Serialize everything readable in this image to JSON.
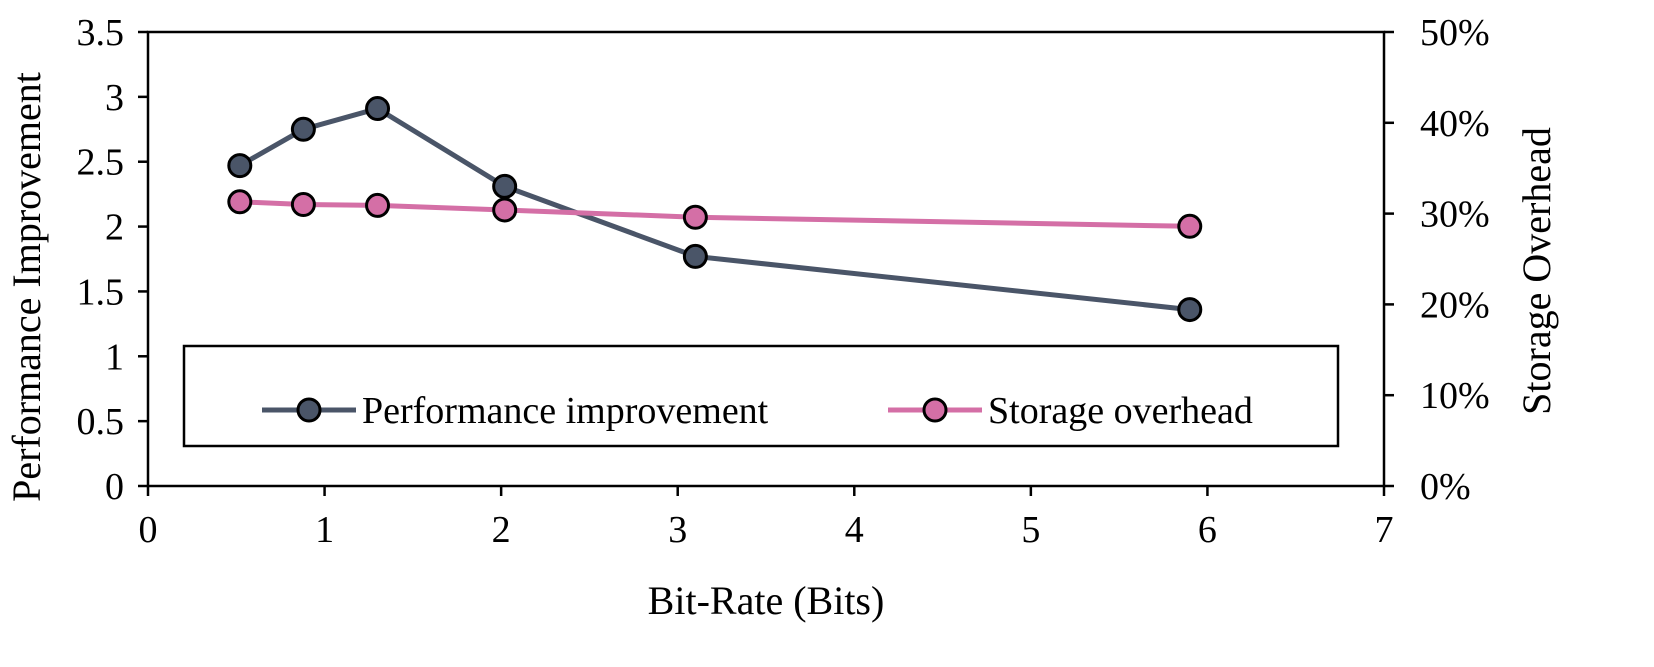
{
  "chart_data": {
    "type": "line",
    "title": "",
    "xlabel": "Bit-Rate (Bits)",
    "ylabel": "Performance Improvement",
    "y2label": "Storage Overhead",
    "xlim": [
      0,
      7
    ],
    "ylim": [
      0,
      3.5
    ],
    "y2lim": [
      0,
      50
    ],
    "x_ticks": [
      0,
      1,
      2,
      3,
      4,
      5,
      6,
      7
    ],
    "x_tick_labels": [
      "0",
      "1",
      "2",
      "3",
      "4",
      "5",
      "6",
      "7"
    ],
    "y_ticks": [
      0,
      0.5,
      1,
      1.5,
      2,
      2.5,
      3,
      3.5
    ],
    "y_tick_labels": [
      "0",
      "0.5",
      "1",
      "1.5",
      "2",
      "2.5",
      "3",
      "3.5"
    ],
    "y2_ticks": [
      0,
      10,
      20,
      30,
      40,
      50
    ],
    "y2_tick_labels": [
      "0%",
      "10%",
      "20%",
      "30%",
      "40%",
      "50%"
    ],
    "grid": false,
    "legend_position": "bottom-left",
    "series": [
      {
        "name": "Performance improvement",
        "axis": "left",
        "color": "#4a5568",
        "x": [
          0.52,
          0.88,
          1.3,
          2.02,
          3.1,
          5.9
        ],
        "values": [
          2.47,
          2.75,
          2.91,
          2.31,
          1.77,
          1.36
        ]
      },
      {
        "name": "Storage overhead",
        "axis": "right",
        "color": "#d46fa6",
        "x": [
          0.52,
          0.88,
          1.3,
          2.02,
          3.1,
          5.9
        ],
        "values": [
          31.3,
          31.0,
          30.9,
          30.4,
          29.6,
          28.6
        ]
      }
    ]
  }
}
